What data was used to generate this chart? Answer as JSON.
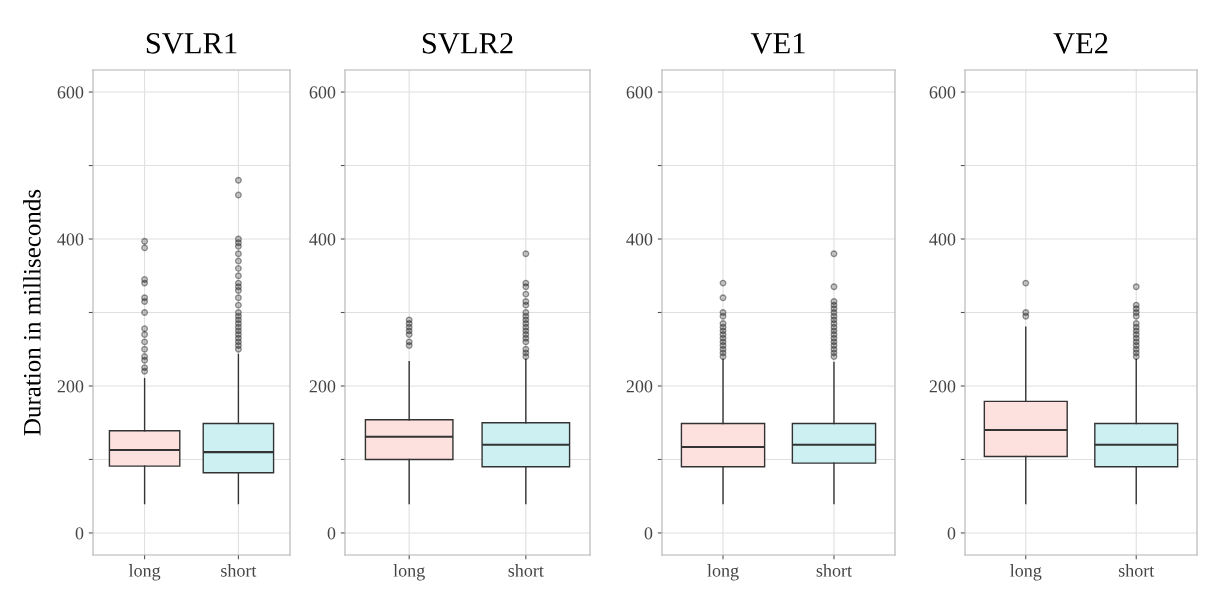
{
  "chart_data": [
    {
      "type": "box",
      "title": "SVLR1",
      "ylabel": "Duration in milliseconds",
      "categories": [
        "long",
        "short"
      ],
      "colors": [
        "#fde1df",
        "#cdf1f2"
      ],
      "ylim": [
        -30,
        630
      ],
      "yticks": [
        0,
        {
          "value": 100,
          "label": null
        },
        200,
        {
          "value": 300,
          "label": null
        },
        400,
        {
          "value": 500,
          "label": null
        },
        600
      ],
      "grid": true,
      "boxes": [
        {
          "low": 40,
          "q1": 91,
          "median": 113,
          "q3": 139,
          "high": 210,
          "outliers": [
            397,
            388,
            345,
            340,
            320,
            315,
            300,
            278,
            270,
            260,
            250,
            240,
            235,
            225,
            220
          ]
        },
        {
          "low": 40,
          "q1": 82,
          "median": 110,
          "q3": 149,
          "high": 243,
          "outliers": [
            480,
            460,
            400,
            395,
            390,
            380,
            370,
            360,
            350,
            340,
            335,
            330,
            320,
            310,
            300,
            295,
            290,
            285,
            280,
            275,
            270,
            265,
            260,
            255,
            250
          ]
        }
      ]
    },
    {
      "type": "box",
      "title": "SVLR2",
      "categories": [
        "long",
        "short"
      ],
      "colors": [
        "#fde1df",
        "#cdf1f2"
      ],
      "ylim": [
        -30,
        630
      ],
      "yticks": [
        0,
        {
          "value": 100,
          "label": null
        },
        200,
        {
          "value": 300,
          "label": null
        },
        400,
        {
          "value": 500,
          "label": null
        },
        600
      ],
      "grid": true,
      "boxes": [
        {
          "low": 40,
          "q1": 100,
          "median": 131,
          "q3": 154,
          "high": 233,
          "outliers": [
            290,
            285,
            280,
            275,
            270,
            260,
            255
          ]
        },
        {
          "low": 40,
          "q1": 90,
          "median": 120,
          "q3": 150,
          "high": 236,
          "outliers": [
            380,
            340,
            335,
            325,
            315,
            310,
            300,
            295,
            290,
            285,
            280,
            275,
            270,
            265,
            260,
            250,
            245,
            240
          ]
        }
      ]
    },
    {
      "type": "box",
      "title": "VE1",
      "categories": [
        "long",
        "short"
      ],
      "colors": [
        "#fde1df",
        "#cdf1f2"
      ],
      "ylim": [
        -30,
        630
      ],
      "yticks": [
        0,
        {
          "value": 100,
          "label": null
        },
        200,
        {
          "value": 300,
          "label": null
        },
        400,
        {
          "value": 500,
          "label": null
        },
        600
      ],
      "grid": true,
      "boxes": [
        {
          "low": 40,
          "q1": 90,
          "median": 117,
          "q3": 149,
          "high": 236,
          "outliers": [
            340,
            320,
            300,
            295,
            285,
            280,
            275,
            270,
            265,
            260,
            255,
            250,
            245,
            240
          ]
        },
        {
          "low": 40,
          "q1": 95,
          "median": 120,
          "q3": 149,
          "high": 232,
          "outliers": [
            380,
            335,
            315,
            310,
            305,
            300,
            295,
            290,
            285,
            280,
            275,
            270,
            265,
            260,
            255,
            250,
            245,
            240
          ]
        }
      ]
    },
    {
      "type": "box",
      "title": "VE2",
      "categories": [
        "long",
        "short"
      ],
      "colors": [
        "#fde1df",
        "#cdf1f2"
      ],
      "ylim": [
        -30,
        630
      ],
      "yticks": [
        0,
        {
          "value": 100,
          "label": null
        },
        200,
        {
          "value": 300,
          "label": null
        },
        400,
        {
          "value": 500,
          "label": null
        },
        600
      ],
      "grid": true,
      "boxes": [
        {
          "low": 40,
          "q1": 104,
          "median": 140,
          "q3": 179,
          "high": 280,
          "outliers": [
            340,
            300,
            295
          ]
        },
        {
          "low": 40,
          "q1": 90,
          "median": 120,
          "q3": 149,
          "high": 236,
          "outliers": [
            335,
            310,
            305,
            300,
            295,
            285,
            280,
            275,
            270,
            265,
            260,
            255,
            250,
            245,
            240
          ]
        }
      ]
    }
  ]
}
